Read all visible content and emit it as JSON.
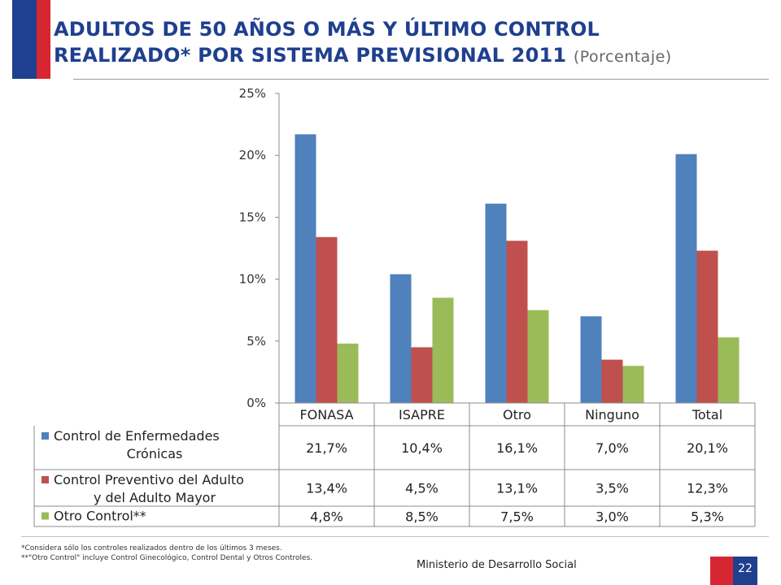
{
  "header": {
    "title_line1": "ADULTOS DE 50 AÑOS O MÁS Y ÚLTIMO CONTROL",
    "title_line2": "REALIZADO* POR  SISTEMA PREVISIONAL 2011",
    "subtitle": "(Porcentaje)"
  },
  "chart_data": {
    "type": "bar",
    "categories": [
      "FONASA",
      "ISAPRE",
      "Otro",
      "Ninguno",
      "Total"
    ],
    "series": [
      {
        "name": "Control de Enfermedades Crónicas",
        "name_lines": [
          "Control de Enfermedades",
          "Crónicas"
        ],
        "color": "#4f81bd",
        "values": [
          21.7,
          10.4,
          16.1,
          7.0,
          20.1
        ],
        "labels": [
          "21,7%",
          "10,4%",
          "16,1%",
          "7,0%",
          "20,1%"
        ]
      },
      {
        "name": "Control Preventivo del Adulto y del Adulto Mayor",
        "name_lines": [
          "Control Preventivo del Adulto",
          "y del Adulto Mayor"
        ],
        "color": "#c0504d",
        "values": [
          13.4,
          4.5,
          13.1,
          3.5,
          12.3
        ],
        "labels": [
          "13,4%",
          "4,5%",
          "13,1%",
          "3,5%",
          "12,3%"
        ]
      },
      {
        "name": "Otro Control**",
        "name_lines": [
          "Otro Control**"
        ],
        "color": "#9bbb59",
        "values": [
          4.8,
          8.5,
          7.5,
          3.0,
          5.3
        ],
        "labels": [
          "4,8%",
          "8,5%",
          "7,5%",
          "3,0%",
          "5,3%"
        ]
      }
    ],
    "ylim": [
      0,
      25
    ],
    "yticks": [
      0,
      5,
      10,
      15,
      20,
      25
    ],
    "ytick_labels": [
      "0%",
      "5%",
      "10%",
      "15%",
      "20%",
      "25%"
    ],
    "grid": false,
    "legend": "data-table"
  },
  "footer": {
    "note1": "*Considera sólo los controles realizados dentro de los últimos 3 meses.",
    "note2": "**\"Otro Control\" incluye Control Ginecológico, Control Dental y Otros Controles.",
    "ministry": "Ministerio de Desarrollo Social",
    "page": "22"
  }
}
